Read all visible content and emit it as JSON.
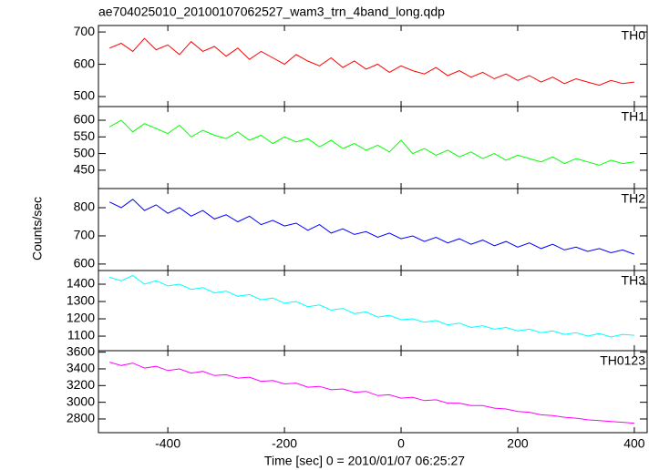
{
  "chart_data": [
    {
      "type": "line",
      "title": "ae704025010_20100107062527_wam3_trn_4band_long.qdp",
      "x": [
        -500,
        -480,
        -460,
        -440,
        -420,
        -400,
        -380,
        -360,
        -340,
        -320,
        -300,
        -280,
        -260,
        -240,
        -220,
        -200,
        -180,
        -160,
        -140,
        -120,
        -100,
        -80,
        -60,
        -40,
        -20,
        0,
        20,
        40,
        60,
        80,
        100,
        120,
        140,
        160,
        180,
        200,
        220,
        240,
        260,
        280,
        300,
        320,
        340,
        360,
        380,
        400
      ],
      "xlim": [
        -519,
        422
      ],
      "series": [
        {
          "name": "TH0",
          "color": "#ff0000",
          "values": [
            650,
            665,
            640,
            680,
            645,
            660,
            630,
            670,
            640,
            655,
            625,
            650,
            615,
            640,
            620,
            600,
            630,
            610,
            595,
            620,
            590,
            610,
            585,
            600,
            575,
            595,
            580,
            570,
            590,
            565,
            580,
            560,
            575,
            555,
            570,
            550,
            565,
            545,
            560,
            540,
            555,
            545,
            535,
            550,
            540,
            545
          ]
        }
      ],
      "ylim": [
        469,
        720
      ],
      "yticks": [
        500,
        600,
        700
      ]
    },
    {
      "type": "line",
      "x": [
        -500,
        -480,
        -460,
        -440,
        -420,
        -400,
        -380,
        -360,
        -340,
        -320,
        -300,
        -280,
        -260,
        -240,
        -220,
        -200,
        -180,
        -160,
        -140,
        -120,
        -100,
        -80,
        -60,
        -40,
        -20,
        0,
        20,
        40,
        60,
        80,
        100,
        120,
        140,
        160,
        180,
        200,
        220,
        240,
        260,
        280,
        300,
        320,
        340,
        360,
        380,
        400
      ],
      "xlim": [
        -519,
        422
      ],
      "series": [
        {
          "name": "TH1",
          "color": "#00ff00",
          "values": [
            580,
            600,
            565,
            590,
            575,
            560,
            585,
            550,
            570,
            555,
            545,
            565,
            540,
            555,
            530,
            550,
            535,
            545,
            520,
            540,
            515,
            530,
            510,
            525,
            505,
            540,
            500,
            515,
            495,
            510,
            490,
            505,
            485,
            500,
            480,
            495,
            485,
            475,
            490,
            470,
            485,
            475,
            465,
            480,
            470,
            475
          ]
        }
      ],
      "ylim": [
        395,
        641
      ],
      "yticks": [
        450,
        500,
        550,
        600
      ]
    },
    {
      "type": "line",
      "ylabel": "Counts/sec",
      "x": [
        -500,
        -480,
        -460,
        -440,
        -420,
        -400,
        -380,
        -360,
        -340,
        -320,
        -300,
        -280,
        -260,
        -240,
        -220,
        -200,
        -180,
        -160,
        -140,
        -120,
        -100,
        -80,
        -60,
        -40,
        -20,
        0,
        20,
        40,
        60,
        80,
        100,
        120,
        140,
        160,
        180,
        200,
        220,
        240,
        260,
        280,
        300,
        320,
        340,
        360,
        380,
        400
      ],
      "xlim": [
        -519,
        422
      ],
      "series": [
        {
          "name": "TH2",
          "color": "#0000ff",
          "values": [
            820,
            800,
            830,
            790,
            810,
            780,
            800,
            770,
            790,
            760,
            775,
            750,
            770,
            740,
            755,
            735,
            745,
            720,
            740,
            710,
            725,
            705,
            715,
            695,
            710,
            690,
            700,
            680,
            695,
            675,
            690,
            670,
            685,
            665,
            680,
            660,
            675,
            655,
            670,
            650,
            660,
            645,
            655,
            640,
            650,
            635
          ]
        }
      ],
      "ylim": [
        577,
        868
      ],
      "yticks": [
        600,
        700,
        800
      ]
    },
    {
      "type": "line",
      "x": [
        -500,
        -480,
        -460,
        -440,
        -420,
        -400,
        -380,
        -360,
        -340,
        -320,
        -300,
        -280,
        -260,
        -240,
        -220,
        -200,
        -180,
        -160,
        -140,
        -120,
        -100,
        -80,
        -60,
        -40,
        -20,
        0,
        20,
        40,
        60,
        80,
        100,
        120,
        140,
        160,
        180,
        200,
        220,
        240,
        260,
        280,
        300,
        320,
        340,
        360,
        380,
        400
      ],
      "xlim": [
        -519,
        422
      ],
      "series": [
        {
          "name": "TH3",
          "color": "#00ffff",
          "values": [
            1440,
            1420,
            1450,
            1400,
            1420,
            1390,
            1400,
            1370,
            1380,
            1350,
            1360,
            1330,
            1340,
            1310,
            1320,
            1290,
            1300,
            1270,
            1280,
            1250,
            1260,
            1230,
            1240,
            1210,
            1220,
            1195,
            1200,
            1180,
            1190,
            1165,
            1175,
            1150,
            1160,
            1140,
            1150,
            1130,
            1140,
            1120,
            1130,
            1110,
            1120,
            1100,
            1115,
            1095,
            1110,
            1105
          ]
        }
      ],
      "ylim": [
        1016,
        1479
      ],
      "yticks": [
        1100,
        1200,
        1300,
        1400
      ]
    },
    {
      "type": "line",
      "xlabel": "Time [sec] 0 = 2010/01/07 06:25:27",
      "x": [
        -500,
        -480,
        -460,
        -440,
        -420,
        -400,
        -380,
        -360,
        -340,
        -320,
        -300,
        -280,
        -260,
        -240,
        -220,
        -200,
        -180,
        -160,
        -140,
        -120,
        -100,
        -80,
        -60,
        -40,
        -20,
        0,
        20,
        40,
        60,
        80,
        100,
        120,
        140,
        160,
        180,
        200,
        220,
        240,
        260,
        280,
        300,
        320,
        340,
        360,
        380,
        400
      ],
      "xlim": [
        -519,
        422
      ],
      "xticks": [
        -400,
        -200,
        0,
        200,
        400
      ],
      "series": [
        {
          "name": "TH0123",
          "color": "#ff00ff",
          "values": [
            3480,
            3440,
            3470,
            3410,
            3430,
            3380,
            3400,
            3350,
            3370,
            3320,
            3330,
            3290,
            3300,
            3250,
            3260,
            3220,
            3230,
            3180,
            3190,
            3150,
            3160,
            3120,
            3130,
            3080,
            3090,
            3050,
            3060,
            3020,
            3030,
            2990,
            2990,
            2960,
            2960,
            2930,
            2920,
            2890,
            2880,
            2850,
            2840,
            2820,
            2810,
            2790,
            2780,
            2770,
            2760,
            2750
          ]
        }
      ],
      "ylim": [
        2636,
        3618
      ],
      "yticks": [
        2800,
        3000,
        3200,
        3400,
        3600
      ]
    }
  ]
}
